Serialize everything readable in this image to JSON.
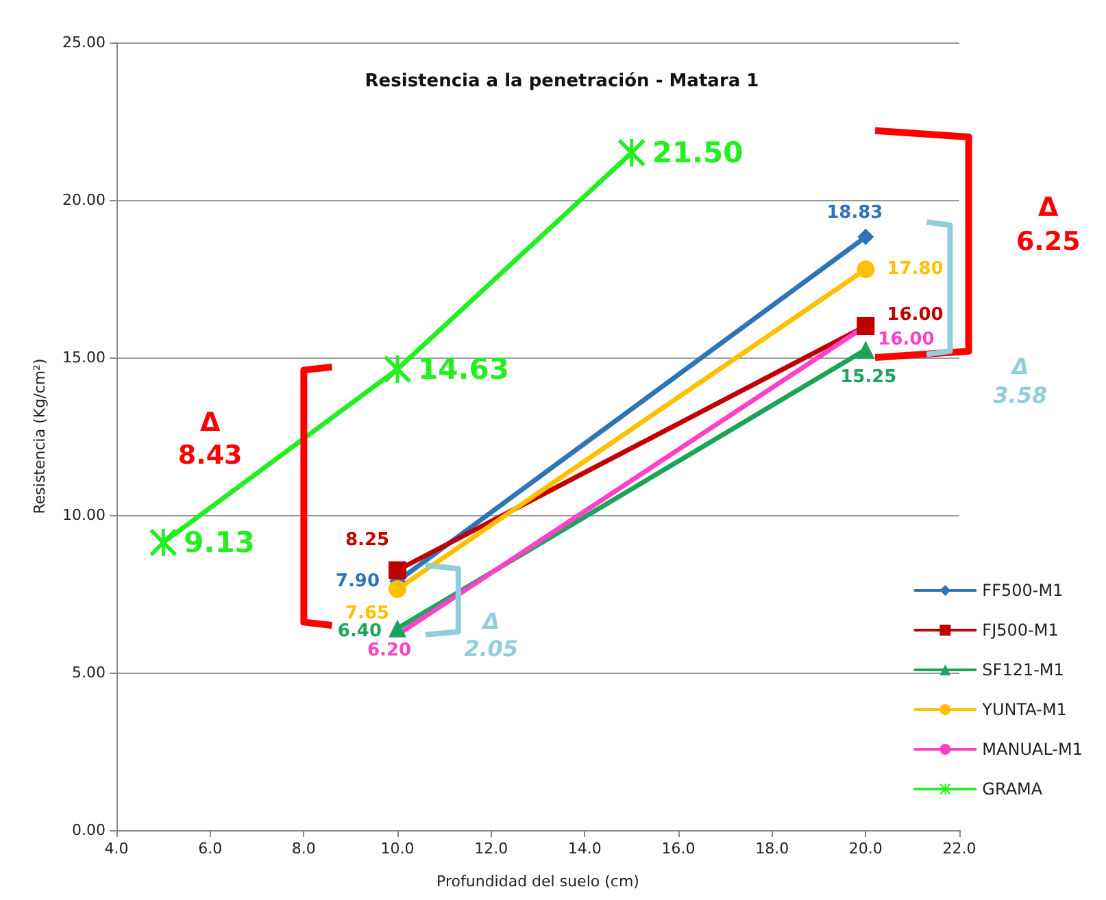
{
  "chart_data": {
    "type": "line",
    "title": "Resistencia a la penetración - Matara 1",
    "xlabel": "Profundidad del suelo (cm)",
    "ylabel": "Resistencia (Kg/cm²)",
    "xlim": [
      4,
      22
    ],
    "xticks": [
      {
        "value": 4,
        "label": "4.0"
      },
      {
        "value": 6,
        "label": "6.0"
      },
      {
        "value": 8,
        "label": "8.0"
      },
      {
        "value": 10,
        "label": "10.0"
      },
      {
        "value": 12,
        "label": "12.0"
      },
      {
        "value": 14,
        "label": "14.0"
      },
      {
        "value": 16,
        "label": "16.0"
      },
      {
        "value": 18,
        "label": "18.0"
      },
      {
        "value": 20,
        "label": "20.0"
      },
      {
        "value": 22,
        "label": "22.0"
      }
    ],
    "ylim": [
      0,
      25
    ],
    "yticks": [
      {
        "value": 0,
        "label": "0.00"
      },
      {
        "value": 5,
        "label": "5.00"
      },
      {
        "value": 10,
        "label": "10.00"
      },
      {
        "value": 15,
        "label": "15.00"
      },
      {
        "value": 20,
        "label": "20.00"
      },
      {
        "value": 25,
        "label": "25.00"
      }
    ],
    "grid": "y",
    "legend": "right",
    "series": [
      {
        "name": "FF500-M1",
        "color": "#2e75b6",
        "marker": "diamond",
        "x": [
          10,
          20
        ],
        "values": [
          7.9,
          18.83
        ],
        "value_labels": [
          "7.90",
          "18.83"
        ]
      },
      {
        "name": "FJ500-M1",
        "color": "#c00000",
        "marker": "square",
        "x": [
          10,
          20
        ],
        "values": [
          8.25,
          16.0
        ],
        "value_labels": [
          "8.25",
          "16.00"
        ]
      },
      {
        "name": "SF121-M1",
        "color": "#1aa55a",
        "marker": "triangle",
        "x": [
          10,
          20
        ],
        "values": [
          6.4,
          15.25
        ],
        "value_labels": [
          "6.40",
          "15.25"
        ]
      },
      {
        "name": "YUNTA-M1",
        "color": "#ffc000",
        "marker": "circle",
        "x": [
          10,
          20
        ],
        "values": [
          7.65,
          17.8
        ],
        "value_labels": [
          "7.65",
          "17.80"
        ]
      },
      {
        "name": "MANUAL-M1",
        "color": "#ff40c8",
        "marker": "none",
        "x": [
          10,
          20
        ],
        "values": [
          6.2,
          16.0
        ],
        "value_labels": [
          "6.20",
          "16.00"
        ]
      },
      {
        "name": "GRAMA",
        "color": "#22ee22",
        "marker": "cross",
        "x": [
          5,
          10,
          15
        ],
        "values": [
          9.13,
          14.63,
          21.5
        ],
        "value_labels": [
          "9.13",
          "14.63",
          "21.50"
        ]
      }
    ],
    "annotations": [
      "Δ 8.43",
      "Δ 2.05",
      "Δ 6.25",
      "Δ 3.58"
    ]
  }
}
